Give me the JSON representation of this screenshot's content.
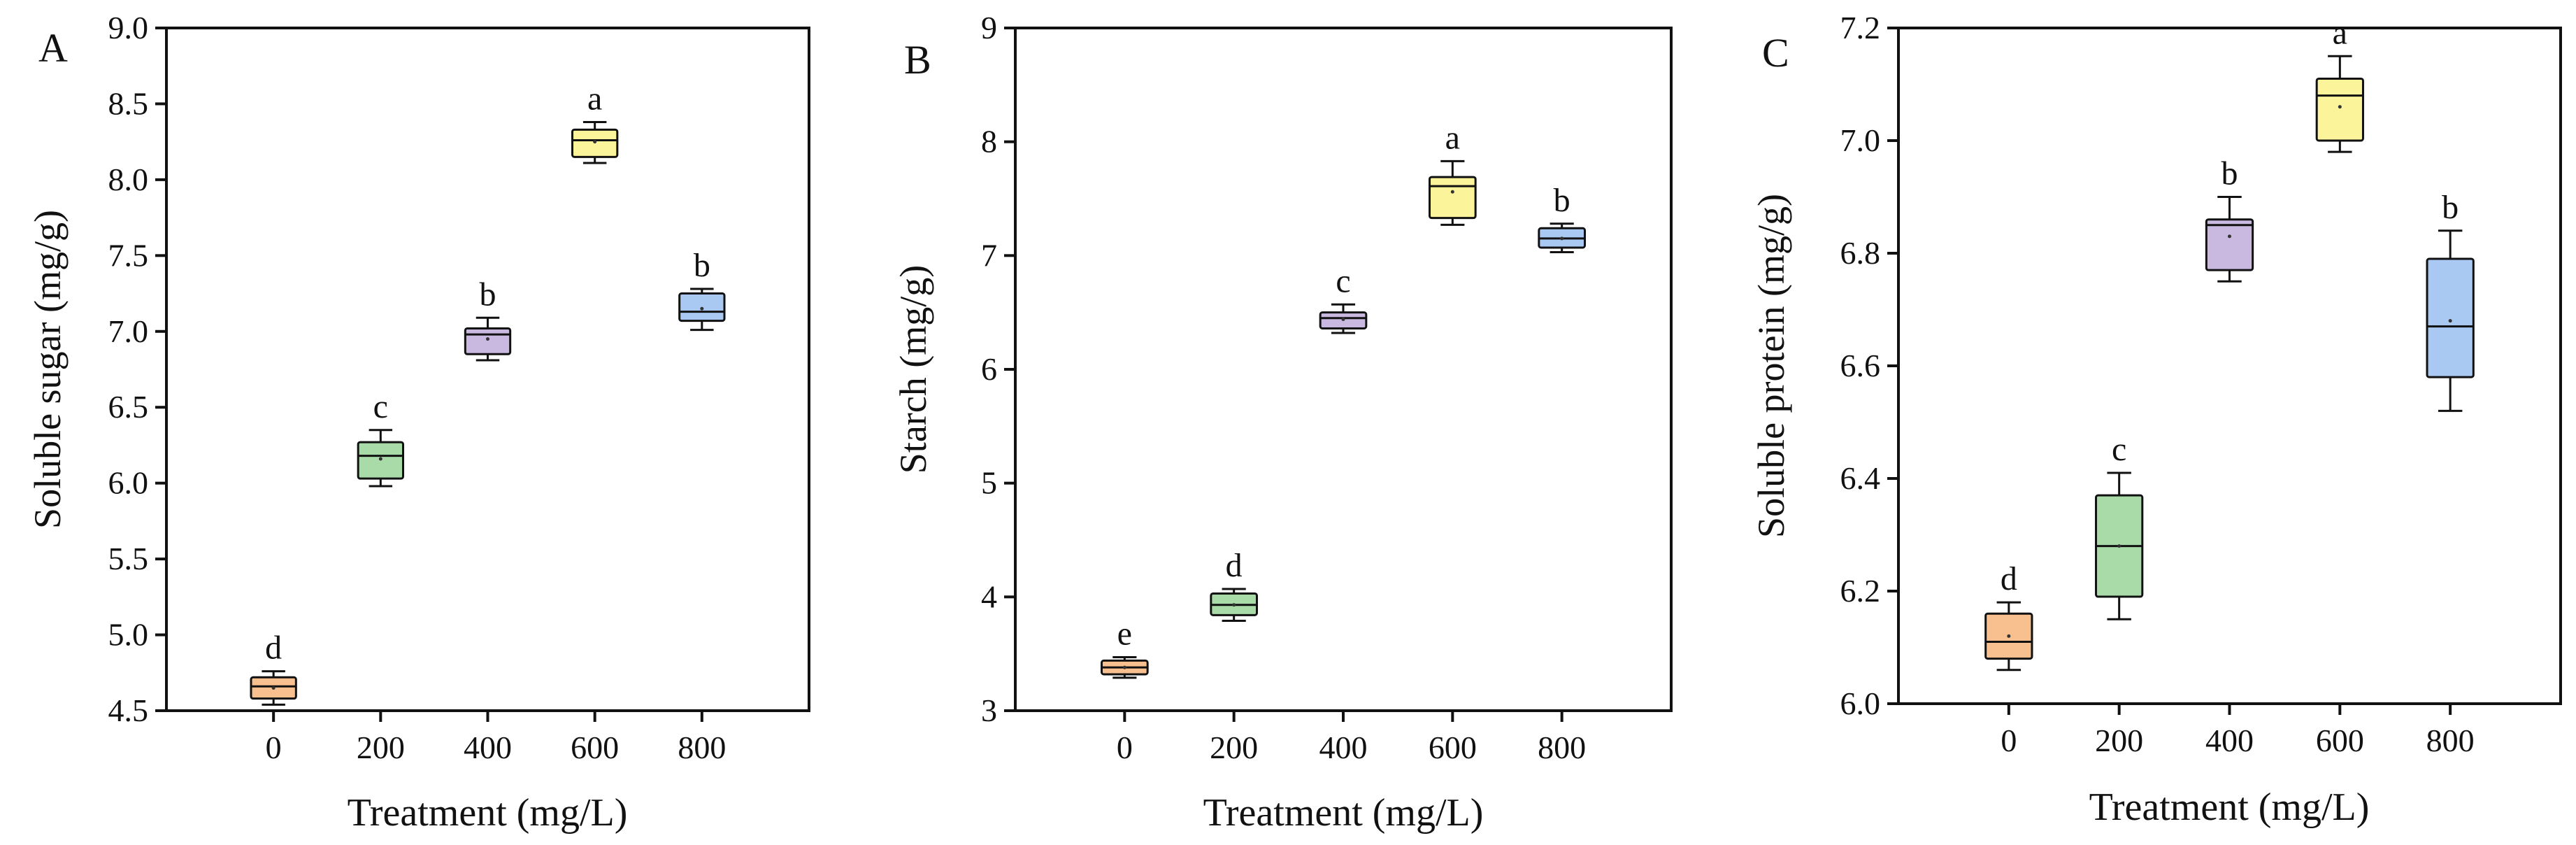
{
  "chart_data": [
    {
      "type": "box",
      "panel_label": "A",
      "xlabel": "Treatment (mg/L)",
      "ylabel": "Soluble sugar (mg/g)",
      "categories": [
        "0",
        "200",
        "400",
        "600",
        "800"
      ],
      "ylim": [
        4.5,
        9.0
      ],
      "yticks": [
        "4.5",
        "5.0",
        "5.5",
        "6.0",
        "6.5",
        "7.0",
        "7.5",
        "8.0",
        "8.5",
        "9.0"
      ],
      "boxes": [
        {
          "category": "0",
          "min": 4.54,
          "q1": 4.58,
          "median": 4.66,
          "q3": 4.72,
          "max": 4.76,
          "mean": 4.65,
          "letter": "d",
          "color": "#F7C08E"
        },
        {
          "category": "200",
          "min": 5.98,
          "q1": 6.03,
          "median": 6.18,
          "q3": 6.27,
          "max": 6.35,
          "mean": 6.16,
          "letter": "c",
          "color": "#A8DBA8"
        },
        {
          "category": "400",
          "min": 6.81,
          "q1": 6.85,
          "median": 6.98,
          "q3": 7.02,
          "max": 7.09,
          "mean": 6.95,
          "letter": "b",
          "color": "#C9B8E0"
        },
        {
          "category": "600",
          "min": 8.11,
          "q1": 8.15,
          "median": 8.26,
          "q3": 8.33,
          "max": 8.38,
          "mean": 8.25,
          "letter": "a",
          "color": "#FCF49A"
        },
        {
          "category": "800",
          "min": 7.01,
          "q1": 7.07,
          "median": 7.13,
          "q3": 7.25,
          "max": 7.28,
          "mean": 7.15,
          "letter": "b",
          "color": "#A9C8F2"
        }
      ]
    },
    {
      "type": "box",
      "panel_label": "B",
      "xlabel": "Treatment (mg/L)",
      "ylabel": "Starch (mg/g)",
      "categories": [
        "0",
        "200",
        "400",
        "600",
        "800"
      ],
      "ylim": [
        3,
        9
      ],
      "yticks": [
        "3",
        "4",
        "5",
        "6",
        "7",
        "8",
        "9"
      ],
      "boxes": [
        {
          "category": "0",
          "min": 3.29,
          "q1": 3.32,
          "median": 3.38,
          "q3": 3.44,
          "max": 3.47,
          "mean": 3.38,
          "letter": "e",
          "color": "#F7C08E"
        },
        {
          "category": "200",
          "min": 3.79,
          "q1": 3.84,
          "median": 3.93,
          "q3": 4.03,
          "max": 4.07,
          "mean": 3.93,
          "letter": "d",
          "color": "#A8DBA8"
        },
        {
          "category": "400",
          "min": 6.32,
          "q1": 6.36,
          "median": 6.45,
          "q3": 6.5,
          "max": 6.57,
          "mean": 6.44,
          "letter": "c",
          "color": "#C9B8E0"
        },
        {
          "category": "600",
          "min": 7.27,
          "q1": 7.33,
          "median": 7.61,
          "q3": 7.69,
          "max": 7.83,
          "mean": 7.56,
          "letter": "a",
          "color": "#FCF49A"
        },
        {
          "category": "800",
          "min": 7.03,
          "q1": 7.07,
          "median": 7.15,
          "q3": 7.24,
          "max": 7.28,
          "mean": 7.15,
          "letter": "b",
          "color": "#A9C8F2"
        }
      ]
    },
    {
      "type": "box",
      "panel_label": "C",
      "xlabel": "Treatment (mg/L)",
      "ylabel": "Soluble protein (mg/g)",
      "categories": [
        "0",
        "200",
        "400",
        "600",
        "800"
      ],
      "ylim": [
        6.0,
        7.2
      ],
      "yticks": [
        "6.0",
        "6.2",
        "6.4",
        "6.6",
        "6.8",
        "7.0",
        "7.2"
      ],
      "boxes": [
        {
          "category": "0",
          "min": 6.06,
          "q1": 6.08,
          "median": 6.11,
          "q3": 6.16,
          "max": 6.18,
          "mean": 6.12,
          "letter": "d",
          "color": "#F7C08E"
        },
        {
          "category": "200",
          "min": 6.15,
          "q1": 6.19,
          "median": 6.28,
          "q3": 6.37,
          "max": 6.41,
          "mean": 6.28,
          "letter": "c",
          "color": "#A8DBA8"
        },
        {
          "category": "400",
          "min": 6.75,
          "q1": 6.77,
          "median": 6.85,
          "q3": 6.86,
          "max": 6.9,
          "mean": 6.83,
          "letter": "b",
          "color": "#C9B8E0"
        },
        {
          "category": "600",
          "min": 6.98,
          "q1": 7.0,
          "median": 7.08,
          "q3": 7.11,
          "max": 7.15,
          "mean": 7.06,
          "letter": "a",
          "color": "#FCF49A"
        },
        {
          "category": "800",
          "min": 6.52,
          "q1": 6.58,
          "median": 6.67,
          "q3": 6.79,
          "max": 6.84,
          "mean": 6.68,
          "letter": "b",
          "color": "#A9C8F2"
        }
      ]
    }
  ]
}
